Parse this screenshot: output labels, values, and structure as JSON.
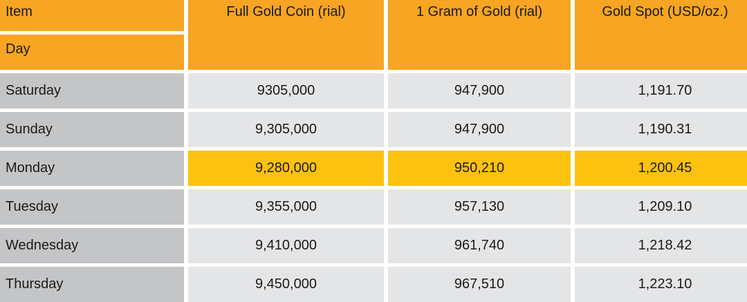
{
  "chart_data": {
    "type": "table",
    "corner_labels": {
      "top": "Item",
      "bottom": "Day"
    },
    "columns": [
      "Full Gold Coin (rial)",
      "1 Gram of Gold (rial)",
      "Gold Spot (USD/oz.)"
    ],
    "rows": [
      {
        "day": "Saturday",
        "values": [
          "9305,000",
          "947,900",
          "1,191.70"
        ],
        "highlight": false
      },
      {
        "day": "Sunday",
        "values": [
          "9,305,000",
          "947,900",
          "1,190.31"
        ],
        "highlight": false
      },
      {
        "day": "Monday",
        "values": [
          "9,280,000",
          "950,210",
          "1,200.45"
        ],
        "highlight": true
      },
      {
        "day": "Tuesday",
        "values": [
          "9,355,000",
          "957,130",
          "1,209.10"
        ],
        "highlight": false
      },
      {
        "day": "Wednesday",
        "values": [
          "9,410,000",
          "961,740",
          "1,218.42"
        ],
        "highlight": false
      },
      {
        "day": "Thursday",
        "values": [
          "9,450,000",
          "967,510",
          "1,223.10"
        ],
        "highlight": false
      }
    ]
  },
  "colors": {
    "header": "#f7a522",
    "day_cell": "#c4c5c7",
    "value_cell": "#e4e5e7",
    "highlight": "#fcc20f"
  }
}
